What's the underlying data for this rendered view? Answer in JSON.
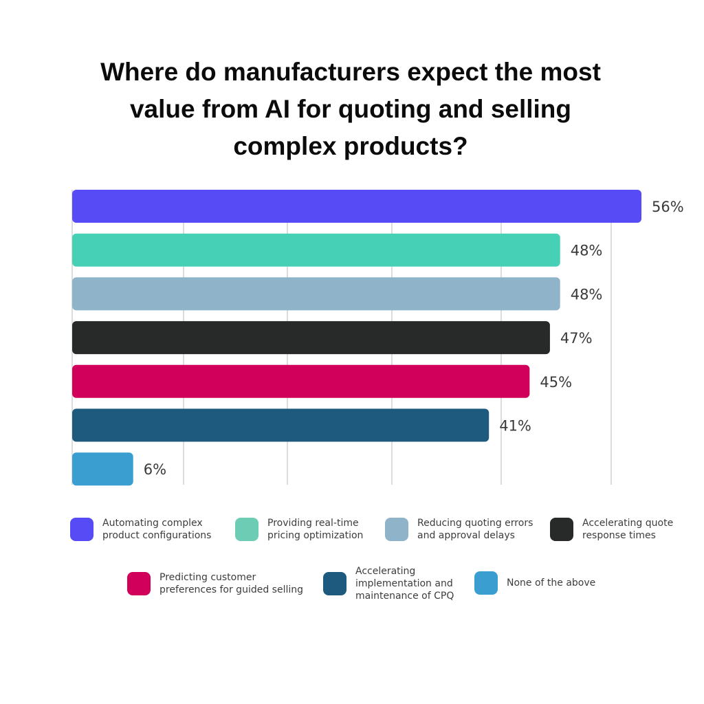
{
  "chart_data": {
    "type": "bar",
    "orientation": "horizontal",
    "title_lines": [
      "Where do manufacturers expect the most",
      "value from AI for quoting and selling",
      "complex products?"
    ],
    "categories": [
      "Automating complex product configurations",
      "Providing real-time pricing optimization",
      "Reducing quoting errors and approval delays",
      "Accelerating quote response times",
      "Predicting customer preferences for guided selling",
      "Accelerating implementation and maintenance of CPQ",
      "None of the above"
    ],
    "values": [
      56,
      48,
      48,
      47,
      45,
      41,
      6
    ],
    "value_labels": [
      "56%",
      "48%",
      "48%",
      "47%",
      "45%",
      "41%",
      "6%"
    ],
    "colors": [
      "#564bf5",
      "#46d0b6",
      "#8fb4ca",
      "#282a2a",
      "#d1005a",
      "#1d5a7e",
      "#3a9ed0"
    ],
    "xlim": [
      0,
      56
    ],
    "grid": true,
    "legend_position": "bottom",
    "legend": [
      {
        "text": "Automating complex\nproduct configurations",
        "color": "#564bf5"
      },
      {
        "text": "Providing real-time\npricing optimization",
        "color": "#6dcdb4"
      },
      {
        "text": "Reducing quoting errors\nand approval delays",
        "color": "#8fb4ca"
      },
      {
        "text": "Accelerating quote\nresponse times",
        "color": "#282a2a"
      },
      {
        "text": "Predicting customer\npreferences for guided selling",
        "color": "#d1005a"
      },
      {
        "text": "Accelerating\nimplementation and\nmaintenance of CPQ",
        "color": "#1d5a7e"
      },
      {
        "text": "None of the above",
        "color": "#3a9ed0"
      }
    ]
  }
}
